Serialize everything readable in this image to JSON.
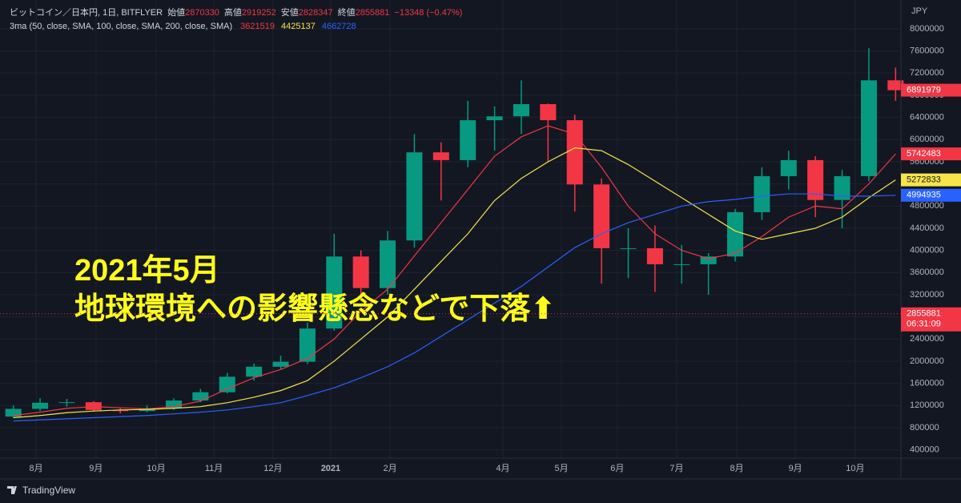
{
  "chart_data": {
    "type": "candlestick",
    "legend": {
      "symbol": "ビットコイン／日本円, 1日, BITFLYER",
      "open_label": "始値",
      "open": 2870330,
      "high_label": "高値",
      "high": 2919252,
      "low_label": "安値",
      "low": 2828347,
      "close_label": "終値",
      "close": 2855881,
      "change": "−13348 (−0.47%)",
      "indicator": "3ma (50, close, SMA, 100, close, SMA, 200, close, SMA)"
    },
    "countdown": "06:31:09",
    "currency": "JPY",
    "annotation": [
      "2021年5月",
      "地球環境への影響懸念などで下落⬆"
    ],
    "up_color": "#089981",
    "down_color": "#f23645",
    "x": [
      0.5,
      1.5,
      2.5,
      3.5,
      4.5,
      5.5,
      6.5,
      7.5,
      8.5,
      9.5,
      10.5,
      11.5,
      12.5,
      13.5,
      14.5,
      15.5,
      16.5,
      17.5,
      18.5,
      19.5,
      20.5,
      21.5,
      22.5,
      23.5,
      24.5,
      25.5,
      26.5,
      27.5,
      28.5,
      29.5,
      30.5,
      31.5,
      32.5,
      33.5
    ],
    "open": [
      1000000,
      1140000,
      1250000,
      1260000,
      1120000,
      1100000,
      1150000,
      1290000,
      1440000,
      1720000,
      1900000,
      1990000,
      2590000,
      3890000,
      3320000,
      4180000,
      5770000,
      5630000,
      6350000,
      6420000,
      6640000,
      6350000,
      5190000,
      4040000,
      4040000,
      3750000,
      3750000,
      3890000,
      4690000,
      5340000,
      5630000,
      4910000,
      5340000,
      7070000
    ],
    "high": [
      1200000,
      1330000,
      1320000,
      1280000,
      1160000,
      1200000,
      1330000,
      1500000,
      1790000,
      1960000,
      2100000,
      2700000,
      4300000,
      4000000,
      4350000,
      6100000,
      5950000,
      6700000,
      6600000,
      7070000,
      6650000,
      6450000,
      5300000,
      4400000,
      4450000,
      4100000,
      3950000,
      4750000,
      5500000,
      5800000,
      5700000,
      5450000,
      7650000,
      7300000
    ],
    "low": [
      980000,
      1100000,
      1180000,
      1090000,
      1060000,
      1080000,
      1120000,
      1260000,
      1420000,
      1650000,
      1860000,
      1950000,
      2550000,
      3100000,
      3200000,
      4050000,
      4900000,
      5500000,
      5800000,
      6100000,
      5600000,
      4700000,
      3400000,
      3500000,
      3250000,
      3400000,
      3200000,
      3800000,
      4550000,
      5100000,
      4600000,
      4400000,
      5250000,
      6700000
    ],
    "close": [
      1140000,
      1250000,
      1260000,
      1120000,
      1100000,
      1150000,
      1290000,
      1440000,
      1720000,
      1900000,
      1990000,
      2590000,
      3890000,
      3320000,
      4180000,
      5770000,
      5630000,
      6350000,
      6420000,
      6640000,
      6350000,
      5190000,
      4040000,
      4040000,
      3750000,
      3750000,
      3890000,
      4690000,
      5340000,
      5630000,
      4910000,
      5340000,
      7070000,
      6891979
    ],
    "series": [
      {
        "color": "#f23645",
        "legend_value": 3621519,
        "values": [
          1020000,
          1080000,
          1150000,
          1180000,
          1160000,
          1140000,
          1180000,
          1280000,
          1500000,
          1700000,
          1850000,
          2050000,
          2400000,
          2900000,
          3300000,
          3900000,
          4500000,
          5100000,
          5700000,
          6050000,
          6250000,
          6100000,
          5500000,
          4800000,
          4300000,
          4000000,
          3850000,
          3950000,
          4250000,
          4600000,
          4800000,
          4750000,
          5200000,
          5742483
        ]
      },
      {
        "color": "#f5e54b",
        "legend_value": 4425137,
        "values": [
          980000,
          1020000,
          1070000,
          1100000,
          1120000,
          1130000,
          1150000,
          1180000,
          1250000,
          1350000,
          1470000,
          1650000,
          2000000,
          2400000,
          2800000,
          3300000,
          3800000,
          4300000,
          4900000,
          5300000,
          5600000,
          5850000,
          5800000,
          5550000,
          5250000,
          4950000,
          4650000,
          4350000,
          4200000,
          4300000,
          4400000,
          4600000,
          4950000,
          5272833
        ]
      },
      {
        "color": "#2962ff",
        "legend_value": 4662728,
        "values": [
          920000,
          940000,
          960000,
          980000,
          1000000,
          1020000,
          1050000,
          1080000,
          1120000,
          1180000,
          1250000,
          1380000,
          1520000,
          1700000,
          1900000,
          2150000,
          2450000,
          2750000,
          3050000,
          3350000,
          3700000,
          4050000,
          4300000,
          4500000,
          4650000,
          4800000,
          4880000,
          4920000,
          4980000,
          5020000,
          5020000,
          4980000,
          4980000,
          4994935
        ]
      }
    ],
    "xlim": [
      0,
      33.7
    ],
    "xticks": [
      {
        "value": 1.35,
        "label": "8月"
      },
      {
        "value": 3.59,
        "label": "9月"
      },
      {
        "value": 5.84,
        "label": "10月"
      },
      {
        "value": 8.0,
        "label": "11月"
      },
      {
        "value": 10.21,
        "label": "12月"
      },
      {
        "value": 12.37,
        "label": "2021"
      },
      {
        "value": 14.59,
        "label": "2月"
      },
      {
        "value": 18.81,
        "label": "4月"
      },
      {
        "value": 21.0,
        "label": "5月"
      },
      {
        "value": 23.09,
        "label": "6月"
      },
      {
        "value": 25.31,
        "label": "7月"
      },
      {
        "value": 27.56,
        "label": "8月"
      },
      {
        "value": 29.75,
        "label": "9月"
      },
      {
        "value": 31.99,
        "label": "10月"
      }
    ],
    "ylim": [
      250000,
      8520000
    ],
    "yticks": [
      400000,
      800000,
      1200000,
      1600000,
      2000000,
      2400000,
      2800000,
      3200000,
      3600000,
      4000000,
      4400000,
      4800000,
      5200000,
      5600000,
      6000000,
      6400000,
      6800000,
      7200000,
      7600000,
      8000000
    ],
    "grid": true
  },
  "footer": {
    "brand": "TradingView"
  }
}
